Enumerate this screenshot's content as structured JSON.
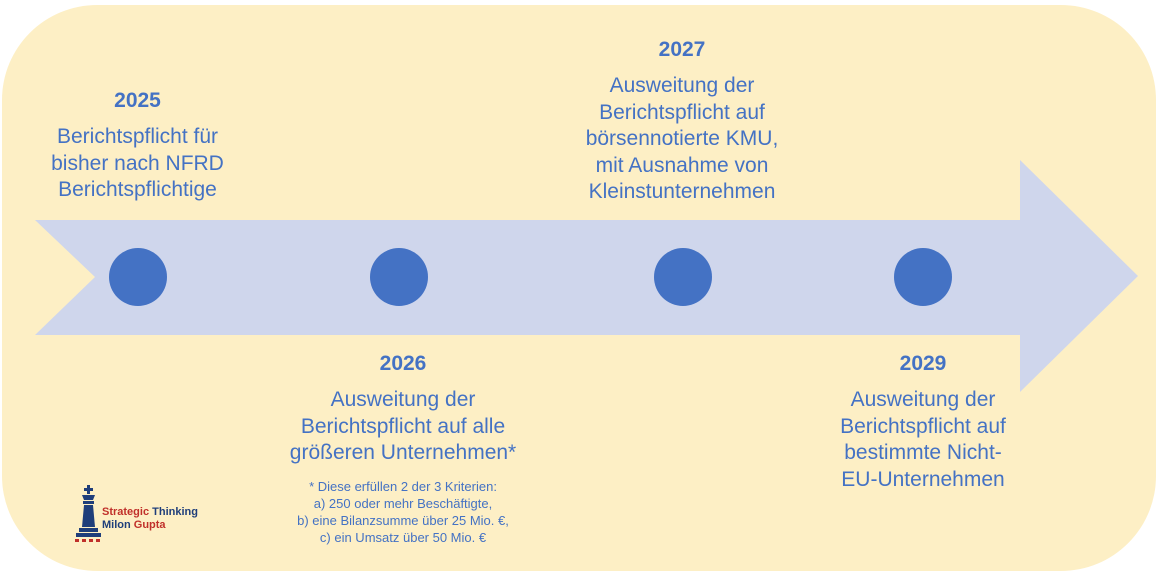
{
  "milestones": [
    {
      "year": "2025",
      "text": "Berichtspflicht für\nbisher nach NFRD\nBerichtspflichtige"
    },
    {
      "year": "2026",
      "text": "Ausweitung der\nBerichtspflicht auf alle\ngrößeren Unternehmen*"
    },
    {
      "year": "2027",
      "text": "Ausweitung der\nBerichtspflicht auf\nbörsennotierte KMU,\nmit Ausnahme von\nKleinstunternehmen"
    },
    {
      "year": "2029",
      "text": "Ausweitung der\nBerichtspflicht auf\nbestimmte Nicht-\nEU-Unternehmen"
    }
  ],
  "footnote": {
    "lines": [
      "* Diese erfüllen 2 der 3 Kriterien:",
      "a) 250 oder mehr Beschäftigte,",
      "b) eine Bilanzsumme über 25 Mio. €,",
      "c) ein Umsatz über 50 Mio. €"
    ]
  },
  "logo": {
    "line1_a": "Strategic",
    "line1_b": " Thinking",
    "line2_a": "Milon",
    "line2_b": " Gupta",
    "icon": "chess-king-icon"
  },
  "colors": {
    "background": "#fdefc5",
    "arrow": "#cfd6ec",
    "accent": "#4472c4"
  }
}
